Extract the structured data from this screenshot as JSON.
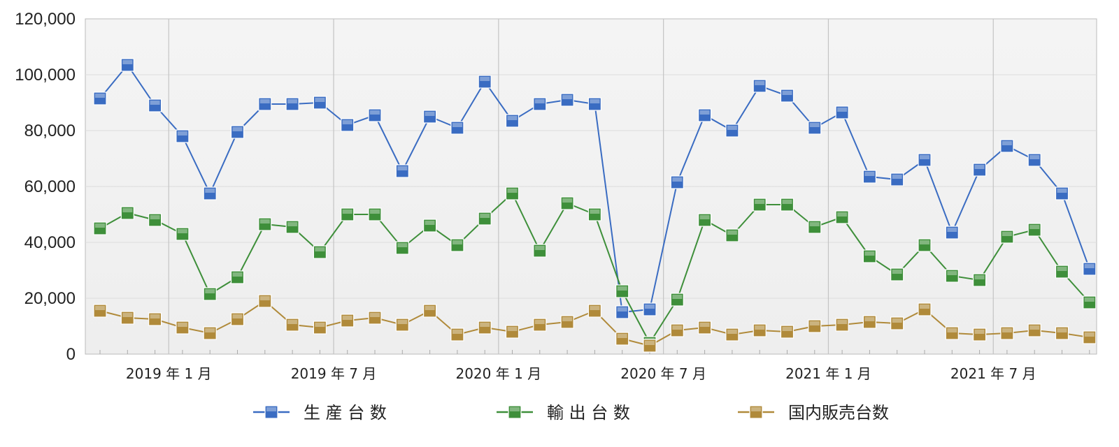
{
  "chart_data": {
    "type": "line",
    "title": "",
    "xlabel": "",
    "ylabel": "",
    "ylim": [
      0,
      120000
    ],
    "yticks": [
      0,
      20000,
      40000,
      60000,
      80000,
      100000,
      120000
    ],
    "ytick_labels": [
      "0",
      "20,000",
      "40,000",
      "60,000",
      "80,000",
      "100,000",
      "120,000"
    ],
    "x_tick_labels": [
      {
        "label": "2019 年 1 月",
        "index": 3
      },
      {
        "label": "2019 年 7 月",
        "index": 9
      },
      {
        "label": "2020 年 1 月",
        "index": 15
      },
      {
        "label": "2020 年 7 月",
        "index": 21
      },
      {
        "label": "2021 年 1 月",
        "index": 27
      },
      {
        "label": "2021 年 7 月",
        "index": 33
      }
    ],
    "grid": true,
    "legend_position": "bottom",
    "series": [
      {
        "name": "生 産 台 数",
        "color": "#3a6cc2",
        "values": [
          91500,
          103500,
          89000,
          78000,
          57500,
          79500,
          89500,
          89500,
          90000,
          82000,
          85500,
          65500,
          85000,
          81000,
          97500,
          83500,
          89500,
          91000,
          89500,
          15000,
          16000,
          61500,
          85500,
          80000,
          96000,
          92500,
          81000,
          86500,
          63500,
          62500,
          69500,
          43500,
          66000,
          74500,
          69500,
          57500,
          30500
        ]
      },
      {
        "name": "輸 出 台 数",
        "color": "#3e8f3a",
        "values": [
          45000,
          50500,
          48000,
          43000,
          21500,
          27500,
          46500,
          45500,
          36500,
          50000,
          50000,
          38000,
          46000,
          39000,
          48500,
          57500,
          37000,
          54000,
          50000,
          22500,
          4000,
          19500,
          48000,
          42500,
          53500,
          53500,
          45500,
          49000,
          35000,
          28500,
          39000,
          28000,
          26500,
          42000,
          44500,
          29500,
          18500
        ]
      },
      {
        "name": "国内販売台数",
        "color": "#b08a3a",
        "values": [
          15500,
          13000,
          12500,
          9500,
          7500,
          12500,
          19000,
          10500,
          9500,
          12000,
          13000,
          10500,
          15500,
          7000,
          9500,
          8000,
          10500,
          11500,
          15500,
          5500,
          3000,
          8500,
          9500,
          7000,
          8500,
          8000,
          10000,
          10500,
          11500,
          11000,
          16000,
          7500,
          7000,
          7500,
          8500,
          7500,
          6000
        ]
      }
    ]
  }
}
